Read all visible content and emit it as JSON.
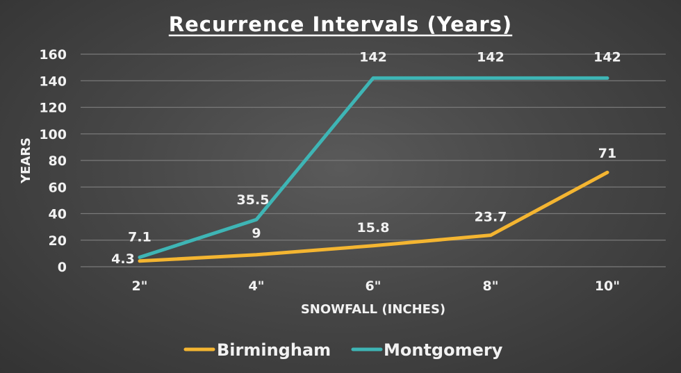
{
  "chart_data": {
    "type": "line",
    "title": "Recurrence Intervals (Years)",
    "xlabel": "SNOWFALL (INCHES)",
    "ylabel": "YEARS",
    "categories": [
      "2\"",
      "4\"",
      "6\"",
      "8\"",
      "10\""
    ],
    "ylim": [
      0,
      160
    ],
    "yticks": [
      0,
      20,
      40,
      60,
      80,
      100,
      120,
      140,
      160
    ],
    "grid": true,
    "legend_position": "bottom",
    "series": [
      {
        "name": "Birmingham",
        "color": "#f4b531",
        "values": [
          4.3,
          9,
          15.8,
          23.7,
          71
        ],
        "labels": [
          "4.3",
          "9",
          "15.8",
          "23.7",
          "71"
        ]
      },
      {
        "name": "Montgomery",
        "color": "#3eb5b5",
        "values": [
          7.1,
          35.5,
          142,
          142,
          142
        ],
        "labels": [
          "7.1",
          "35.5",
          "142",
          "142",
          "142"
        ]
      }
    ]
  }
}
